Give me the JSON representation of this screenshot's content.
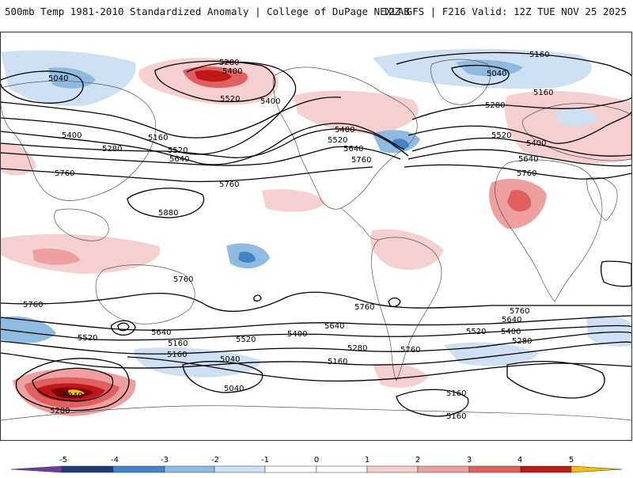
{
  "header": {
    "title_left": "500mb Temp 1981-2010 Standardized Anomaly | College of DuPage NEXLAB",
    "title_right": "12Z GFS | F216 Valid: 12Z TUE NOV 25 2025"
  },
  "map": {
    "contour_labels": [
      {
        "id": "c5280-nw",
        "text": "5280"
      },
      {
        "id": "c5400-nw",
        "text": "5400"
      },
      {
        "id": "c5040-nw",
        "text": "5040"
      },
      {
        "id": "c5520-np",
        "text": "5520"
      },
      {
        "id": "c5400-np",
        "text": "5400"
      },
      {
        "id": "c5400-wp",
        "text": "5400"
      },
      {
        "id": "c5280-wp",
        "text": "5280"
      },
      {
        "id": "c5160-np",
        "text": "5160"
      },
      {
        "id": "c5520-cp",
        "text": "5520"
      },
      {
        "id": "c5640-cp",
        "text": "5640"
      },
      {
        "id": "c5760-wp",
        "text": "5760"
      },
      {
        "id": "c5760-cp",
        "text": "5760"
      },
      {
        "id": "c5880-wp",
        "text": "5880"
      },
      {
        "id": "c5400-na",
        "text": "5400"
      },
      {
        "id": "c5520-na",
        "text": "5520"
      },
      {
        "id": "c5640-na",
        "text": "5640"
      },
      {
        "id": "c5760-na",
        "text": "5760"
      },
      {
        "id": "c5160-gr",
        "text": "5160"
      },
      {
        "id": "c5040-gr",
        "text": "5040"
      },
      {
        "id": "c5160-eu",
        "text": "5160"
      },
      {
        "id": "c5280-at",
        "text": "5280"
      },
      {
        "id": "c5520-at",
        "text": "5520"
      },
      {
        "id": "c5400-eu",
        "text": "5400"
      },
      {
        "id": "c5640-eu",
        "text": "5640"
      },
      {
        "id": "c5760-eu",
        "text": "5760"
      },
      {
        "id": "c5760-sp",
        "text": "5760"
      },
      {
        "id": "c5760-sw",
        "text": "5760"
      },
      {
        "id": "c5640-sw",
        "text": "5640"
      },
      {
        "id": "c5520-sw",
        "text": "5520"
      },
      {
        "id": "c5160-sw",
        "text": "5160"
      },
      {
        "id": "c5040-sw",
        "text": "5040"
      },
      {
        "id": "c5280-sw",
        "text": "5280"
      },
      {
        "id": "c5520-sp",
        "text": "5520"
      },
      {
        "id": "c5400-sp",
        "text": "5400"
      },
      {
        "id": "c5160-sp",
        "text": "5160"
      },
      {
        "id": "c5040-sp",
        "text": "5040"
      },
      {
        "id": "c5040-sp2",
        "text": "5040"
      },
      {
        "id": "c5640-sa",
        "text": "5640"
      },
      {
        "id": "c5760-sa",
        "text": "5760"
      },
      {
        "id": "c5280-sa",
        "text": "5280"
      },
      {
        "id": "c5160-sa",
        "text": "5160"
      },
      {
        "id": "c5520-si",
        "text": "5520"
      },
      {
        "id": "c5760-si",
        "text": "5760"
      },
      {
        "id": "c5640-si",
        "text": "5640"
      },
      {
        "id": "c5400-si",
        "text": "5400"
      },
      {
        "id": "c5280-si",
        "text": "5280"
      },
      {
        "id": "c5160-si",
        "text": "5160"
      },
      {
        "id": "c5160-si2",
        "text": "5160"
      },
      {
        "id": "c5760-sp2",
        "text": "5760"
      }
    ]
  },
  "colorbar": {
    "ticks": [
      "-5",
      "-4",
      "-3",
      "-2",
      "-1",
      "0",
      "1",
      "2",
      "3",
      "4",
      "5"
    ],
    "colors": {
      "c_m5": "#6a3fa0",
      "c_m4": "#1f3c78",
      "c_m3": "#3f86c8",
      "c_m2": "#8fbbe0",
      "c_m1": "#cfe0f2",
      "c_0": "#ffffff",
      "c_p1": "#f6d0d0",
      "c_p2": "#eea0a0",
      "c_p3": "#e06060",
      "c_p4": "#c01818",
      "c_p5": "#7a0000",
      "c_over": "#f4c000"
    }
  },
  "colors": {
    "land_line": "#555555",
    "contour": "#000000",
    "warm_light": "#f6d0d0",
    "warm_mid": "#eea0a0",
    "warm_strong": "#e06060",
    "warm_deep": "#c01818",
    "warm_extreme": "#7a0000",
    "cold_light": "#cfe0f2",
    "cold_mid": "#8fbbe0",
    "cold_strong": "#3f86c8",
    "yellow": "#f4c000"
  }
}
